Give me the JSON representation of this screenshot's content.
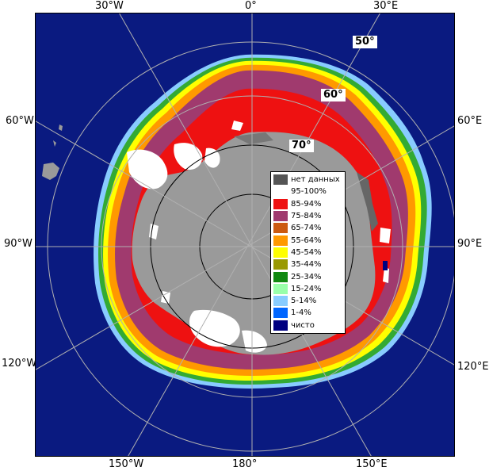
{
  "map": {
    "longitude_labels": {
      "top": [
        "30°W",
        "0°",
        "30°E"
      ],
      "left": [
        "60°W",
        "90°W",
        "120°W"
      ],
      "right": [
        "60°E",
        "90°E",
        "120°E"
      ],
      "bottom": [
        "150°W",
        "180°",
        "150°E"
      ]
    },
    "latitude_labels": [
      "50°",
      "60°",
      "70°"
    ],
    "colors": {
      "ocean": "#0a1a80",
      "land": "#9a9a9a",
      "ice_shelf": "#808080",
      "grid": "#b0b0b0"
    }
  },
  "legend": {
    "items": [
      {
        "label": "нет данных",
        "color": "#555555"
      },
      {
        "label": "95-100%",
        "color": "#ffffff"
      },
      {
        "label": "85-94%",
        "color": "#ee1111"
      },
      {
        "label": "75-84%",
        "color": "#a03a6e"
      },
      {
        "label": "65-74%",
        "color": "#cc5a10"
      },
      {
        "label": "55-64%",
        "color": "#ff9900"
      },
      {
        "label": "45-54%",
        "color": "#ffff00"
      },
      {
        "label": "35-44%",
        "color": "#999900"
      },
      {
        "label": "25-34%",
        "color": "#118811"
      },
      {
        "label": "15-24%",
        "color": "#99ffaa"
      },
      {
        "label": "5-14%",
        "color": "#88ccff"
      },
      {
        "label": "1-4%",
        "color": "#0066ff"
      },
      {
        "label": "чисто",
        "color": "#000080"
      }
    ]
  }
}
